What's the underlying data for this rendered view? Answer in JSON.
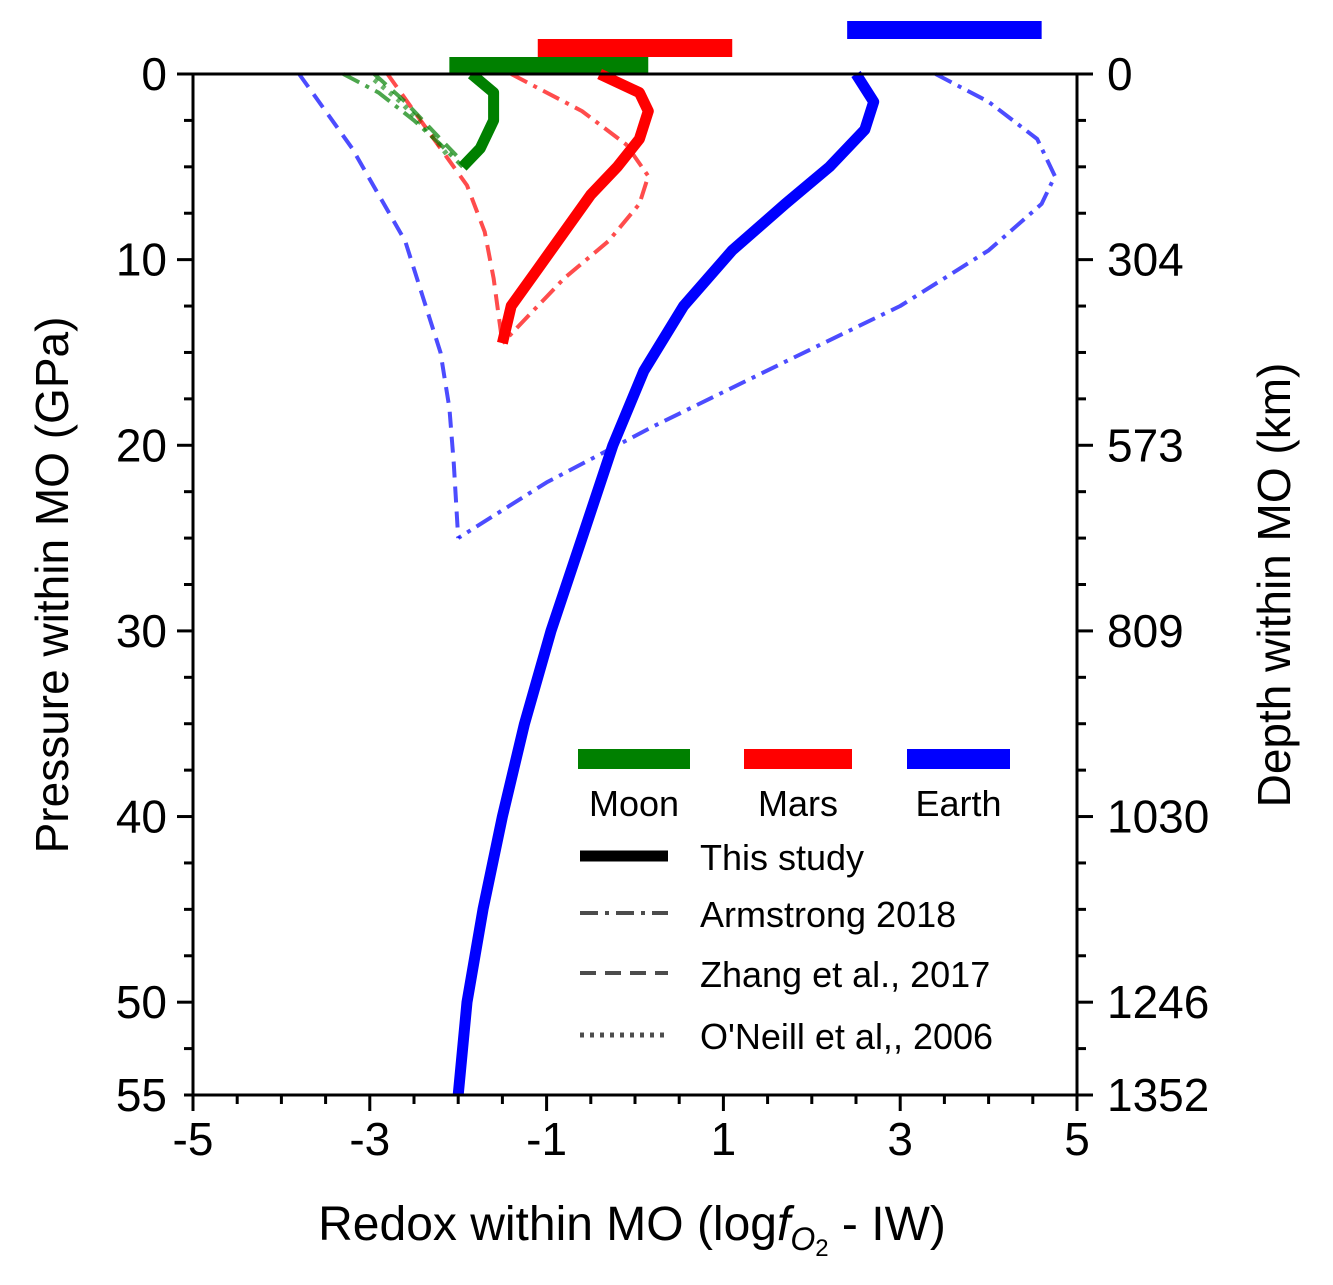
{
  "chart_data": {
    "type": "line",
    "xlabel_main": "Redox within MO (log",
    "xlabel_f": "f",
    "xlabel_sub_O": "O",
    "xlabel_sub_2": "2",
    "xlabel_tail": " - IW)",
    "ylabel_left": "Pressure within MO (GPa)",
    "ylabel_right": "Depth within MO (km)",
    "xlim": [
      -5,
      5
    ],
    "ylim": [
      0,
      55
    ],
    "y_inverted": true,
    "x_ticks": [
      -5,
      -3,
      -1,
      1,
      3,
      5
    ],
    "y_ticks": [
      0,
      10,
      20,
      30,
      40,
      50,
      55
    ],
    "right_ticks": [
      {
        "p": 0,
        "label": "0"
      },
      {
        "p": 10,
        "label": "304"
      },
      {
        "p": 20,
        "label": "573"
      },
      {
        "p": 30,
        "label": "809"
      },
      {
        "p": 40,
        "label": "1030"
      },
      {
        "p": 50,
        "label": "1246"
      },
      {
        "p": 55,
        "label": "1352"
      }
    ],
    "colors": {
      "moon": "#008000",
      "mars": "#ff0000",
      "earth": "#0000ff"
    },
    "range_bars": [
      {
        "body": "moon",
        "x": [
          -2.1,
          0.15
        ],
        "level": 0
      },
      {
        "body": "mars",
        "x": [
          -1.1,
          1.1
        ],
        "level": 1
      },
      {
        "body": "earth",
        "x": [
          2.4,
          4.6
        ],
        "level": 2
      }
    ],
    "series": [
      {
        "body": "earth",
        "style": "solid",
        "points": [
          [
            2.5,
            0
          ],
          [
            2.7,
            1.5
          ],
          [
            2.6,
            3
          ],
          [
            2.2,
            5
          ],
          [
            1.7,
            7
          ],
          [
            1.1,
            9.5
          ],
          [
            0.55,
            12.5
          ],
          [
            0.1,
            16
          ],
          [
            -0.25,
            20
          ],
          [
            -0.6,
            25
          ],
          [
            -0.95,
            30
          ],
          [
            -1.25,
            35
          ],
          [
            -1.5,
            40
          ],
          [
            -1.72,
            45
          ],
          [
            -1.9,
            50
          ],
          [
            -2.0,
            55
          ]
        ]
      },
      {
        "body": "earth",
        "style": "dashdot",
        "points": [
          [
            3.4,
            0
          ],
          [
            4.0,
            1.5
          ],
          [
            4.55,
            3.5
          ],
          [
            4.75,
            5.5
          ],
          [
            4.6,
            7
          ],
          [
            4.0,
            9.5
          ],
          [
            3.0,
            12.5
          ],
          [
            1.7,
            15.5
          ],
          [
            0.2,
            19
          ],
          [
            -1.0,
            22
          ],
          [
            -2.0,
            25
          ]
        ]
      },
      {
        "body": "earth",
        "style": "dashed",
        "points": [
          [
            -3.8,
            0
          ],
          [
            -3.5,
            2
          ],
          [
            -3.2,
            4
          ],
          [
            -2.9,
            6.5
          ],
          [
            -2.6,
            9
          ],
          [
            -2.4,
            12
          ],
          [
            -2.2,
            15
          ],
          [
            -2.1,
            18
          ],
          [
            -2.05,
            21
          ],
          [
            -2.0,
            25
          ]
        ]
      },
      {
        "body": "mars",
        "style": "solid",
        "points": [
          [
            -0.4,
            0
          ],
          [
            0.05,
            1
          ],
          [
            0.15,
            2
          ],
          [
            0.05,
            3.5
          ],
          [
            -0.2,
            5
          ],
          [
            -0.5,
            6.5
          ],
          [
            -0.8,
            8.5
          ],
          [
            -1.1,
            10.5
          ],
          [
            -1.4,
            12.5
          ],
          [
            -1.5,
            14.5
          ]
        ]
      },
      {
        "body": "mars",
        "style": "dashdot",
        "points": [
          [
            -1.4,
            0
          ],
          [
            -0.6,
            2
          ],
          [
            -0.1,
            3.8
          ],
          [
            0.15,
            5.5
          ],
          [
            0.05,
            7
          ],
          [
            -0.3,
            9
          ],
          [
            -0.8,
            11
          ],
          [
            -1.2,
            13
          ],
          [
            -1.5,
            14.5
          ]
        ]
      },
      {
        "body": "mars",
        "style": "dashed",
        "points": [
          [
            -2.8,
            0
          ],
          [
            -2.5,
            2
          ],
          [
            -2.2,
            4
          ],
          [
            -1.9,
            6
          ],
          [
            -1.7,
            8.5
          ],
          [
            -1.6,
            11
          ],
          [
            -1.5,
            14.5
          ]
        ]
      },
      {
        "body": "moon",
        "style": "solid",
        "points": [
          [
            -1.85,
            0
          ],
          [
            -1.6,
            1
          ],
          [
            -1.6,
            2.5
          ],
          [
            -1.75,
            4
          ],
          [
            -1.95,
            5
          ]
        ]
      },
      {
        "body": "moon",
        "style": "dashdot",
        "points": [
          [
            -3.3,
            0
          ],
          [
            -2.9,
            1
          ],
          [
            -2.5,
            2.5
          ],
          [
            -2.2,
            3.8
          ],
          [
            -1.95,
            5
          ]
        ]
      },
      {
        "body": "moon",
        "style": "dashed",
        "points": [
          [
            -2.95,
            0
          ],
          [
            -2.6,
            1.5
          ],
          [
            -2.3,
            3
          ],
          [
            -2.0,
            4.5
          ]
        ]
      },
      {
        "body": "moon",
        "style": "dotted",
        "points": [
          [
            -2.95,
            0.3
          ],
          [
            -2.65,
            1.5
          ],
          [
            -2.35,
            3
          ],
          [
            -2.1,
            4.5
          ]
        ]
      }
    ],
    "legend": {
      "bodies": [
        {
          "body": "moon",
          "label": "Moon"
        },
        {
          "body": "mars",
          "label": "Mars"
        },
        {
          "body": "earth",
          "label": "Earth"
        }
      ],
      "styles": [
        {
          "style": "solid",
          "label": "This study"
        },
        {
          "style": "dashdot",
          "label": "Armstrong 2018"
        },
        {
          "style": "dashed",
          "label": "Zhang et al., 2017"
        },
        {
          "style": "dotted",
          "label": "O'Neill et al,, 2006"
        }
      ],
      "placement": "lower-right"
    }
  }
}
